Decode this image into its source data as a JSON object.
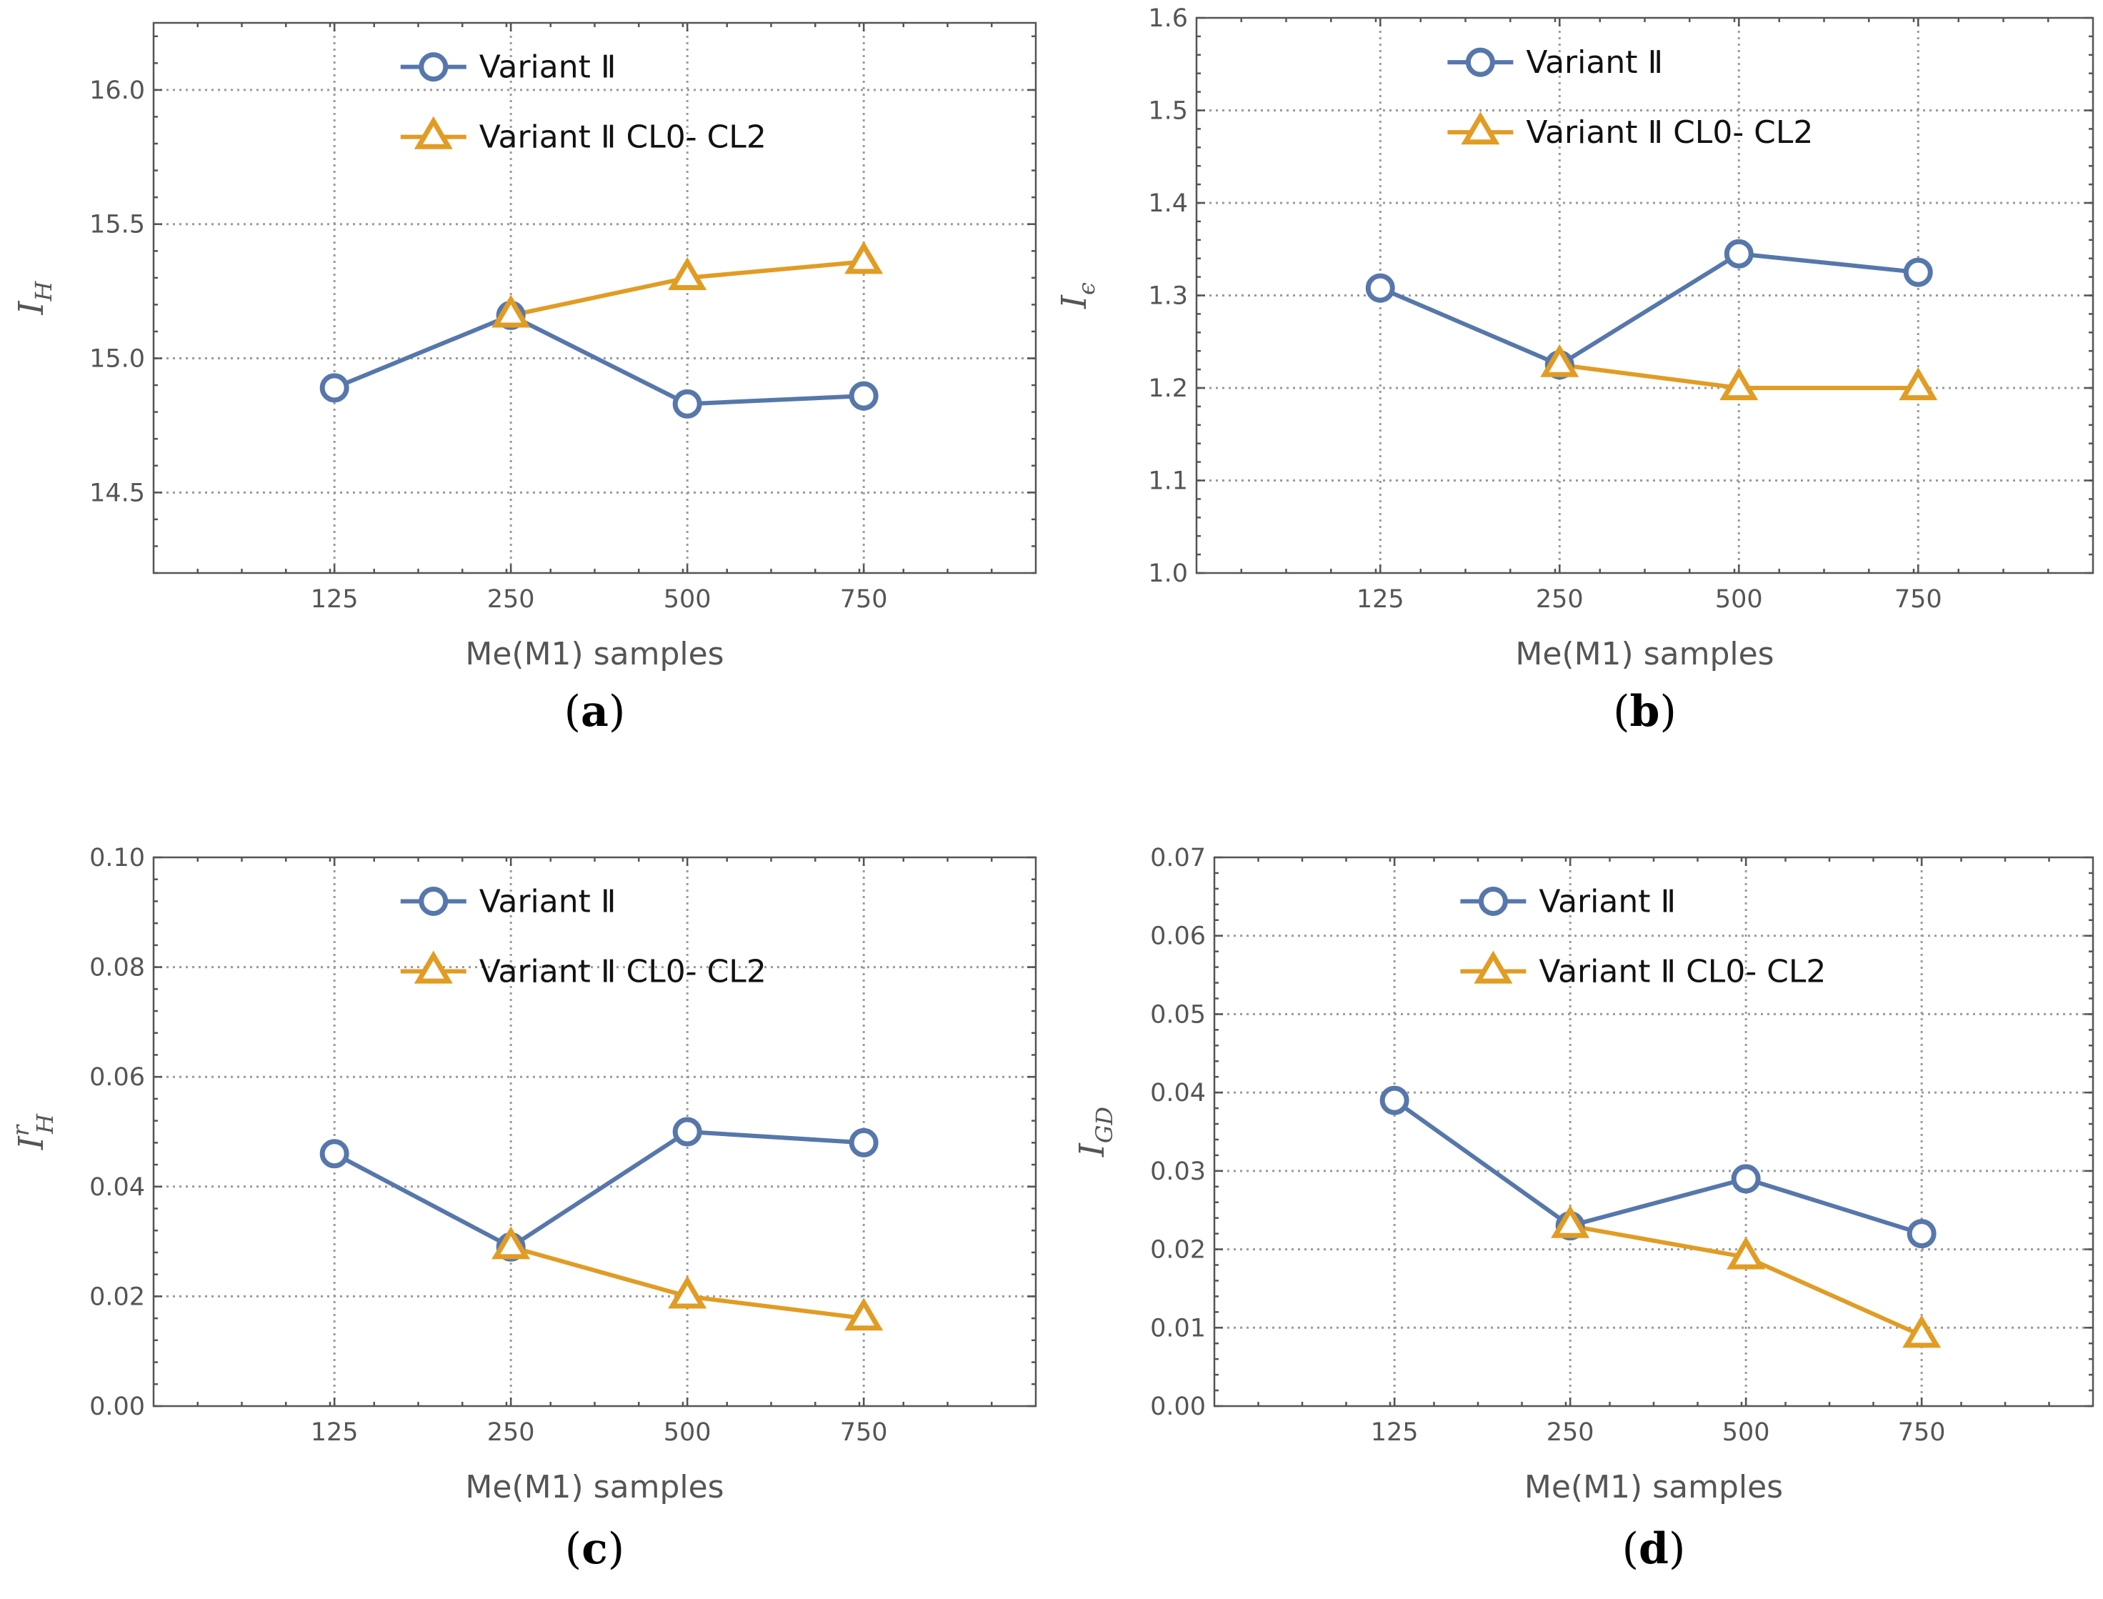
{
  "colors": {
    "series_1": "#5677ab",
    "series_2": "#e19c24"
  },
  "chart_data": [
    {
      "type": "line",
      "caption": "a",
      "categories": [
        "125",
        "250",
        "500",
        "750"
      ],
      "xlabel": "Me(M1) samples",
      "ylabel": "I",
      "ylabel_sub": "H",
      "ylabel_sup": "",
      "ylim": [
        14.2,
        16.25
      ],
      "yticks": [
        "14.5",
        "15.0",
        "15.5",
        "16.0"
      ],
      "legend_position": "top-center",
      "series": [
        {
          "name": "Variant Ⅱ",
          "marker": "circle",
          "values": [
            14.89,
            15.16,
            14.83,
            14.86
          ]
        },
        {
          "name": "Variant Ⅱ CL0- CL2",
          "marker": "triangle",
          "values": [
            null,
            15.16,
            15.3,
            15.36
          ]
        }
      ]
    },
    {
      "type": "line",
      "caption": "b",
      "categories": [
        "125",
        "250",
        "500",
        "750"
      ],
      "xlabel": "Me(M1) samples",
      "ylabel": "I",
      "ylabel_sub": "ϵ",
      "ylabel_sup": "",
      "ylim": [
        1.0,
        1.6
      ],
      "yticks": [
        "1.0",
        "1.1",
        "1.2",
        "1.3",
        "1.4",
        "1.5",
        "1.6"
      ],
      "legend_position": "top-center",
      "series": [
        {
          "name": "Variant Ⅱ",
          "marker": "circle",
          "values": [
            1.308,
            1.225,
            1.345,
            1.325
          ]
        },
        {
          "name": "Variant Ⅱ CL0- CL2",
          "marker": "triangle",
          "values": [
            null,
            1.225,
            1.2,
            1.2
          ]
        }
      ]
    },
    {
      "type": "line",
      "caption": "c",
      "categories": [
        "125",
        "250",
        "500",
        "750"
      ],
      "xlabel": "Me(M1) samples",
      "ylabel": "I",
      "ylabel_sub": "H",
      "ylabel_sup": "r",
      "ylim": [
        0.0,
        0.1
      ],
      "yticks": [
        "0.00",
        "0.02",
        "0.04",
        "0.06",
        "0.08",
        "0.10"
      ],
      "legend_position": "top-center",
      "series": [
        {
          "name": "Variant Ⅱ",
          "marker": "circle",
          "values": [
            0.046,
            0.029,
            0.05,
            0.048
          ]
        },
        {
          "name": "Variant Ⅱ CL0- CL2",
          "marker": "triangle",
          "values": [
            null,
            0.029,
            0.02,
            0.016
          ]
        }
      ]
    },
    {
      "type": "line",
      "caption": "d",
      "categories": [
        "125",
        "250",
        "500",
        "750"
      ],
      "xlabel": "Me(M1) samples",
      "ylabel": "I",
      "ylabel_sub": "GD",
      "ylabel_sup": "",
      "ylim": [
        0.0,
        0.07
      ],
      "yticks": [
        "0.00",
        "0.01",
        "0.02",
        "0.03",
        "0.04",
        "0.05",
        "0.06",
        "0.07"
      ],
      "legend_position": "top-center",
      "series": [
        {
          "name": "Variant Ⅱ",
          "marker": "circle",
          "values": [
            0.039,
            0.023,
            0.029,
            0.022
          ]
        },
        {
          "name": "Variant Ⅱ CL0- CL2",
          "marker": "triangle",
          "values": [
            null,
            0.023,
            0.019,
            0.009
          ]
        }
      ]
    }
  ]
}
